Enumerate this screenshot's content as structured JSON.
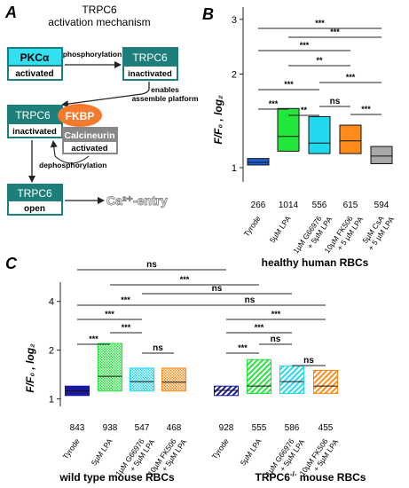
{
  "panelA": {
    "letter": "A",
    "title_line1": "TRPC6",
    "title_line2": "activation mechanism",
    "pkc": {
      "name": "PKCα",
      "state": "activated"
    },
    "phosphorylation": "phosphorylation",
    "trpc_top": {
      "name": "TRPC6",
      "state": "inactivated"
    },
    "enables_line1": "enables",
    "enables_line2": "assemble platform",
    "complex": {
      "trpc": "TRPC6",
      "state": "inactivated",
      "fkbp": "FKBP",
      "calcineurin": "Calcineurin",
      "cn_state": "activated"
    },
    "dephosphorylation": "dephosphorylation",
    "open": {
      "name": "TRPC6",
      "state": "open"
    },
    "ca_entry": "Ca²⁺-entry",
    "colors": {
      "teal": "#1e7f7a",
      "cyan": "#33e0f2",
      "fkbp": "#f47a2e",
      "gray": "#888888"
    }
  },
  "panelB": {
    "letter": "B",
    "ylabel": "F/F₀ , log₂",
    "xlabel": "healthy human RBCs"
  },
  "panelC": {
    "letter": "C",
    "ylabel": "F/F₀ , log₂",
    "group_wt": "wild type mouse RBCs",
    "group_ko_prefix": "TRPC6",
    "group_ko_sup": "-/-",
    "group_ko_suffix": " mouse RBCs"
  },
  "chart_data": [
    {
      "type": "box",
      "panel": "B",
      "scale": "log2",
      "ylim": [
        0.9,
        3.2
      ],
      "yticks": [
        1,
        2,
        3
      ],
      "categories": [
        "Tyrode",
        "5µM LPA",
        "1µM G66976 + 5µM LPA",
        "10µM FK506 + 5 µM LPA",
        "5µM CsA + 5 µM LPA"
      ],
      "boxes": [
        {
          "q1": 1.02,
          "median": 1.04,
          "q3": 1.07,
          "n": "266",
          "color": "#1f5fd6"
        },
        {
          "q1": 1.13,
          "median": 1.26,
          "q3": 1.55,
          "n": "1014",
          "color": "#22e63a"
        },
        {
          "q1": 1.11,
          "median": 1.2,
          "q3": 1.46,
          "n": "556",
          "color": "#20d8ee"
        },
        {
          "q1": 1.11,
          "median": 1.22,
          "q3": 1.37,
          "n": "615",
          "color": "#ff8c1a"
        },
        {
          "q1": 1.03,
          "median": 1.09,
          "q3": 1.17,
          "n": "594",
          "color": "#a8a8a8"
        }
      ],
      "significance": [
        {
          "from": 0,
          "to": 4,
          "label": "***"
        },
        {
          "from": 1,
          "to": 4,
          "label": "***"
        },
        {
          "from": 0,
          "to": 3,
          "label": "***"
        },
        {
          "from": 1,
          "to": 3,
          "label": "**"
        },
        {
          "from": 0,
          "to": 2,
          "label": "***"
        },
        {
          "from": 2,
          "to": 4,
          "label": "***"
        },
        {
          "from": 0,
          "to": 1,
          "label": "***"
        },
        {
          "from": 2,
          "to": 3,
          "label": "ns"
        },
        {
          "from": 1,
          "to": 2,
          "label": "**"
        },
        {
          "from": 3,
          "to": 4,
          "label": "***"
        }
      ]
    },
    {
      "type": "box",
      "panel": "C",
      "scale": "log2",
      "ylim": [
        0.9,
        5
      ],
      "yticks": [
        1,
        2,
        4
      ],
      "categories": [
        "Tyrode",
        "5µM LPA",
        "1µM G66976 + 5µM LPA",
        "10µM FK506 + 5µM LPA",
        "Tyrode",
        "5µM LPA",
        "1µM G66976 + 5µM LPA",
        "10µM FK506 + 5µM LPA"
      ],
      "boxes": [
        {
          "q1": 1.05,
          "median": 1.12,
          "q3": 1.2,
          "n": "843",
          "color": "#1a1a9e",
          "pattern": "solid"
        },
        {
          "q1": 1.12,
          "median": 1.38,
          "q3": 2.2,
          "n": "938",
          "color": "#22e63a",
          "pattern": "dots"
        },
        {
          "q1": 1.12,
          "median": 1.28,
          "q3": 1.55,
          "n": "547",
          "color": "#20d8ee",
          "pattern": "dots"
        },
        {
          "q1": 1.12,
          "median": 1.27,
          "q3": 1.55,
          "n": "468",
          "color": "#ff8c1a",
          "pattern": "dots"
        },
        {
          "q1": 1.05,
          "median": 1.13,
          "q3": 1.2,
          "n": "928",
          "color": "#1a1a9e",
          "pattern": "hatch"
        },
        {
          "q1": 1.08,
          "median": 1.2,
          "q3": 1.75,
          "n": "555",
          "color": "#22e63a",
          "pattern": "hatch"
        },
        {
          "q1": 1.08,
          "median": 1.28,
          "q3": 1.6,
          "n": "586",
          "color": "#20d8ee",
          "pattern": "hatch"
        },
        {
          "q1": 1.08,
          "median": 1.2,
          "q3": 1.5,
          "n": "455",
          "color": "#ff8c1a",
          "pattern": "hatch"
        }
      ],
      "significance": [
        {
          "from": 0,
          "to": 4,
          "label": "ns"
        },
        {
          "from": 1,
          "to": 5,
          "label": "***"
        },
        {
          "from": 2,
          "to": 6,
          "label": "ns"
        },
        {
          "from": 3,
          "to": 7,
          "label": "ns"
        },
        {
          "from": 0,
          "to": 3,
          "label": "***"
        },
        {
          "from": 0,
          "to": 2,
          "label": "***"
        },
        {
          "from": 1,
          "to": 2,
          "label": "***"
        },
        {
          "from": 0,
          "to": 1,
          "label": "***"
        },
        {
          "from": 2,
          "to": 3,
          "label": "ns"
        },
        {
          "from": 4,
          "to": 7,
          "label": "***"
        },
        {
          "from": 4,
          "to": 6,
          "label": "***"
        },
        {
          "from": 5,
          "to": 6,
          "label": "ns"
        },
        {
          "from": 4,
          "to": 5,
          "label": "***"
        },
        {
          "from": 6,
          "to": 7,
          "label": "ns"
        }
      ]
    }
  ]
}
